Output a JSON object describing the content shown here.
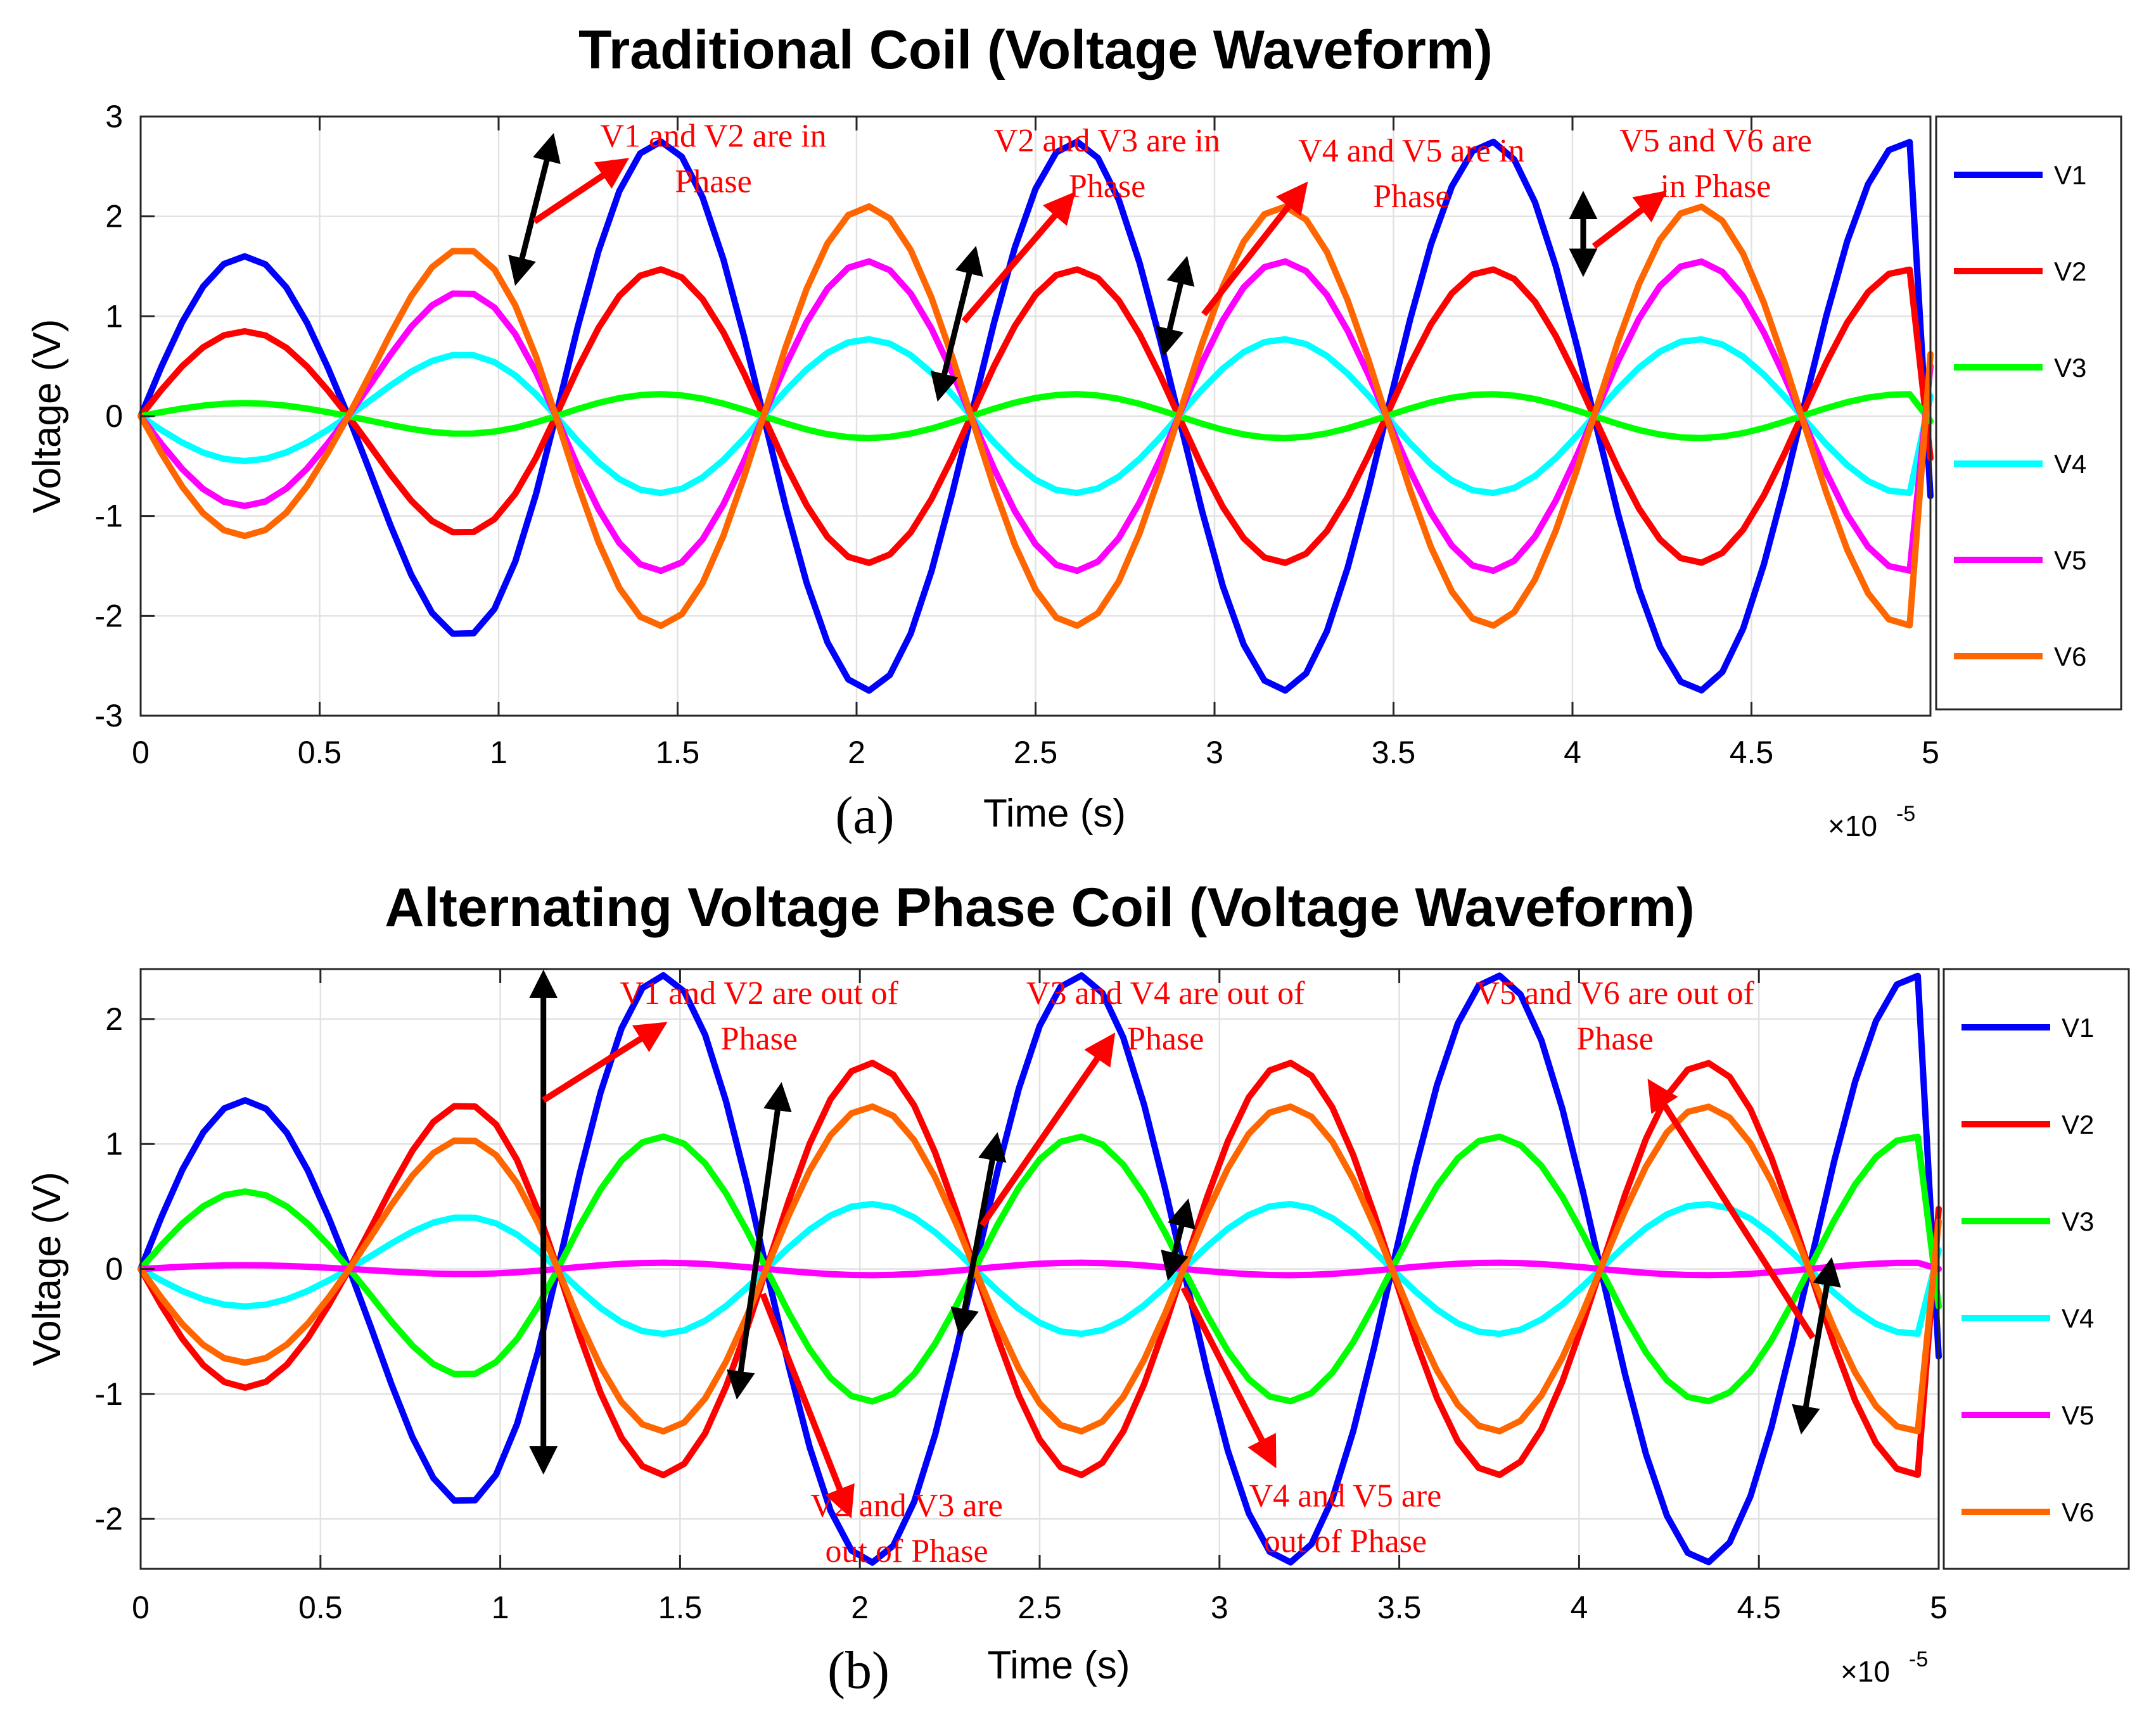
{
  "chart_data": [
    {
      "type": "line",
      "panel_label": "(a)",
      "title": "Traditional Coil (Voltage Waveform)",
      "xlabel": "Time (s)",
      "ylabel": "Voltage (V)",
      "x_multiplier": "×10",
      "x_multiplier_exponent": "-5",
      "xlim": [
        0,
        5
      ],
      "ylim": [
        -3,
        3
      ],
      "xticks": [
        "0",
        "0.5",
        "1",
        "1.5",
        "2",
        "2.5",
        "3",
        "3.5",
        "4",
        "4.5",
        "5"
      ],
      "yticks": [
        "-3",
        "-2",
        "-1",
        "0",
        "1",
        "2",
        "3"
      ],
      "grid": true,
      "legend_placement": "right-outside",
      "period": 1.16,
      "series": [
        {
          "name": "V1",
          "color": "#0000ff",
          "start_amplitude": 1.6,
          "amplitude": 2.75,
          "end_value": -0.8
        },
        {
          "name": "V2",
          "color": "#ff0000",
          "start_amplitude": 0.85,
          "amplitude": 1.47,
          "end_value": -0.42
        },
        {
          "name": "V3",
          "color": "#00ff00",
          "start_amplitude": 0.13,
          "amplitude": 0.22,
          "end_value": -0.05
        },
        {
          "name": "V4",
          "color": "#00ffff",
          "start_amplitude": -0.45,
          "amplitude": -0.77,
          "end_value": 0.2
        },
        {
          "name": "V5",
          "color": "#ff00ff",
          "start_amplitude": -0.9,
          "amplitude": -1.55,
          "end_value": 0.5
        },
        {
          "name": "V6",
          "color": "#ff6600",
          "start_amplitude": -1.2,
          "amplitude": -2.1,
          "end_value": 0.62
        }
      ],
      "annotations": [
        {
          "lines": [
            "V1 and V2 are in",
            "Phase"
          ],
          "text_x": 1.6,
          "text_y": 2.7,
          "arrow_from": [
            1.1,
            1.95
          ],
          "arrow_to": [
            1.35,
            2.55
          ]
        },
        {
          "lines": [
            "V2 and V3 are in",
            "Phase"
          ],
          "text_x": 2.7,
          "text_y": 2.65,
          "arrow_from": [
            2.3,
            0.95
          ],
          "arrow_to": [
            2.6,
            2.2
          ]
        },
        {
          "lines": [
            "V4 and V5 are in",
            "Phase"
          ],
          "text_x": 3.55,
          "text_y": 2.55,
          "arrow_from": [
            2.97,
            1.02
          ],
          "arrow_to": [
            3.25,
            2.3
          ]
        },
        {
          "lines": [
            "V5 and V6 are",
            "in Phase"
          ],
          "text_x": 4.4,
          "text_y": 2.65,
          "arrow_from": [
            4.06,
            1.7
          ],
          "arrow_to": [
            4.25,
            2.22
          ]
        }
      ],
      "double_arrows": [
        {
          "from": [
            1.15,
            2.78
          ],
          "to": [
            1.05,
            1.36
          ]
        },
        {
          "from": [
            2.33,
            1.65
          ],
          "to": [
            2.23,
            0.2
          ]
        },
        {
          "from": [
            2.92,
            1.55
          ],
          "to": [
            2.86,
            0.65
          ]
        },
        {
          "from": [
            4.03,
            2.2
          ],
          "to": [
            4.03,
            1.45
          ]
        }
      ]
    },
    {
      "type": "line",
      "panel_label": "(b)",
      "title": "Alternating Voltage Phase Coil (Voltage Waveform)",
      "xlabel": "Time (s)",
      "ylabel": "Voltage (V)",
      "x_multiplier": "×10",
      "x_multiplier_exponent": "-5",
      "xlim": [
        0,
        5
      ],
      "ylim": [
        -2.4,
        2.4
      ],
      "xticks": [
        "0",
        "0.5",
        "1",
        "1.5",
        "2",
        "2.5",
        "3",
        "3.5",
        "4",
        "4.5",
        "5"
      ],
      "yticks": [
        "-2",
        "-1",
        "0",
        "1",
        "2"
      ],
      "grid": true,
      "legend_placement": "right-outside",
      "period": 1.16,
      "series": [
        {
          "name": "V1",
          "color": "#0000ff",
          "start_amplitude": 1.35,
          "amplitude": 2.35,
          "end_value": -0.7
        },
        {
          "name": "V2",
          "color": "#ff0000",
          "start_amplitude": -0.95,
          "amplitude": -1.65,
          "end_value": 0.48
        },
        {
          "name": "V3",
          "color": "#00ff00",
          "start_amplitude": 0.62,
          "amplitude": 1.06,
          "end_value": -0.3
        },
        {
          "name": "V4",
          "color": "#00ffff",
          "start_amplitude": -0.3,
          "amplitude": -0.52,
          "end_value": 0.15
        },
        {
          "name": "V5",
          "color": "#ff00ff",
          "start_amplitude": 0.03,
          "amplitude": 0.05,
          "end_value": 0.0
        },
        {
          "name": "V6",
          "color": "#ff6600",
          "start_amplitude": -0.75,
          "amplitude": -1.3,
          "end_value": 0.38
        }
      ],
      "annotations": [
        {
          "lines": [
            "V1 and V2 are out of",
            "Phase"
          ],
          "text_x": 1.72,
          "text_y": 2.12,
          "arrow_from": [
            1.12,
            1.35
          ],
          "arrow_to": [
            1.45,
            1.95
          ]
        },
        {
          "lines": [
            "V3 and V4 are out of",
            "Phase"
          ],
          "text_x": 2.85,
          "text_y": 2.12,
          "arrow_from": [
            2.34,
            0.35
          ],
          "arrow_to": [
            2.7,
            1.85
          ]
        },
        {
          "lines": [
            "V5 and V6 are out of",
            "Phase"
          ],
          "text_x": 4.1,
          "text_y": 2.12,
          "arrow_from": [
            4.65,
            -0.55
          ],
          "arrow_to": [
            4.2,
            1.48
          ]
        },
        {
          "lines": [
            "V2 and V3 are",
            "out of Phase"
          ],
          "text_x": 2.13,
          "text_y": -1.98,
          "arrow_from": [
            1.73,
            -0.2
          ],
          "arrow_to": [
            1.97,
            -1.95
          ]
        },
        {
          "lines": [
            "V4 and V5 are",
            "out of Phase"
          ],
          "text_x": 3.35,
          "text_y": -1.9,
          "arrow_from": [
            2.9,
            -0.15
          ],
          "arrow_to": [
            3.15,
            -1.55
          ]
        }
      ],
      "double_arrows": [
        {
          "from": [
            1.12,
            2.35
          ],
          "to": [
            1.12,
            -1.6
          ]
        },
        {
          "from": [
            1.78,
            1.45
          ],
          "to": [
            1.66,
            -1.0
          ]
        },
        {
          "from": [
            2.38,
            1.05
          ],
          "to": [
            2.28,
            -0.5
          ]
        },
        {
          "from": [
            2.91,
            0.52
          ],
          "to": [
            2.86,
            -0.05
          ]
        },
        {
          "from": [
            4.7,
            0.05
          ],
          "to": [
            4.62,
            -1.28
          ]
        }
      ]
    }
  ]
}
